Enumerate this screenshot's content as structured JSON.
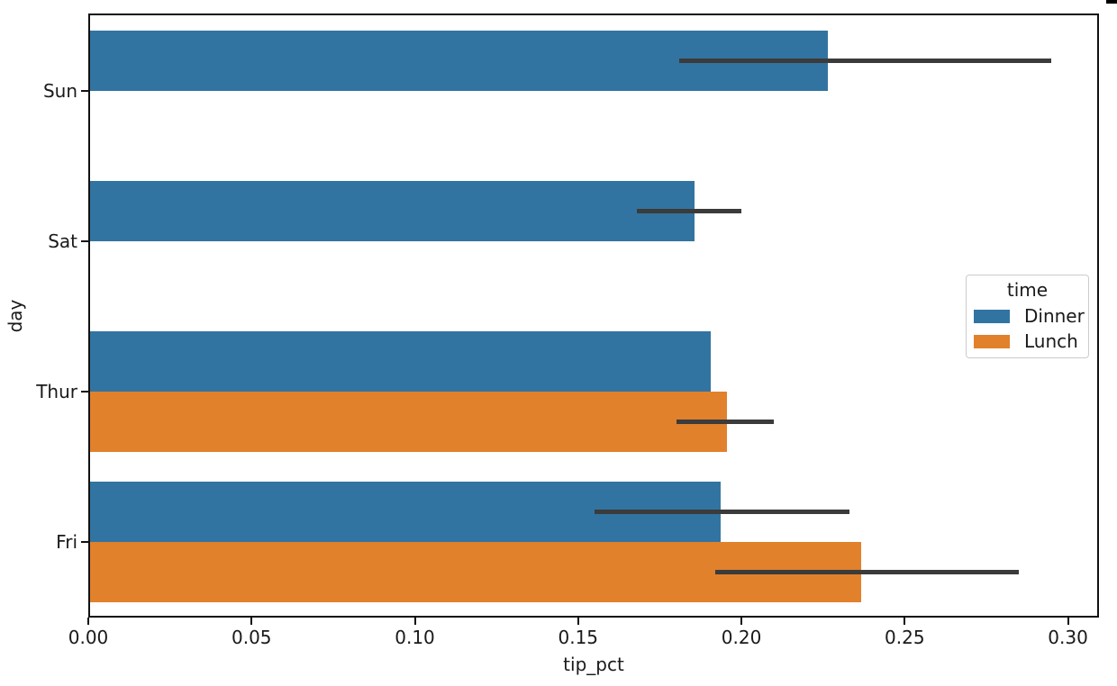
{
  "figure": {
    "background_color": "#ffffff",
    "text_color": "#1a1a1a",
    "spine_color": "#111111",
    "corner_mark_color": "#000000"
  },
  "chart_data": {
    "type": "bar",
    "orientation": "horizontal",
    "title": "",
    "xlabel": "tip_pct",
    "ylabel": "day",
    "categories": [
      "Sun",
      "Sat",
      "Thur",
      "Fri"
    ],
    "x_tick_labels": [
      "0.00",
      "0.05",
      "0.10",
      "0.15",
      "0.20",
      "0.25",
      "0.30"
    ],
    "x_tick_values": [
      0.0,
      0.05,
      0.1,
      0.15,
      0.2,
      0.25,
      0.3
    ],
    "xlim": [
      0.0,
      0.3095
    ],
    "grid": false,
    "bar_group_fraction": 0.8,
    "error_bar_color": "#3b3b3b",
    "legend": {
      "title": "time",
      "position": "center-right"
    },
    "series": [
      {
        "name": "Dinner",
        "color": "#3274a1",
        "values": [
          0.226,
          0.185,
          0.19,
          0.193
        ],
        "ci_low": [
          0.181,
          0.168,
          null,
          0.155
        ],
        "ci_high": [
          0.295,
          0.2,
          null,
          0.233
        ]
      },
      {
        "name": "Lunch",
        "color": "#e1812c",
        "values": [
          null,
          null,
          0.195,
          0.236
        ],
        "ci_low": [
          null,
          null,
          0.18,
          0.192
        ],
        "ci_high": [
          null,
          null,
          0.21,
          0.285
        ]
      }
    ]
  }
}
